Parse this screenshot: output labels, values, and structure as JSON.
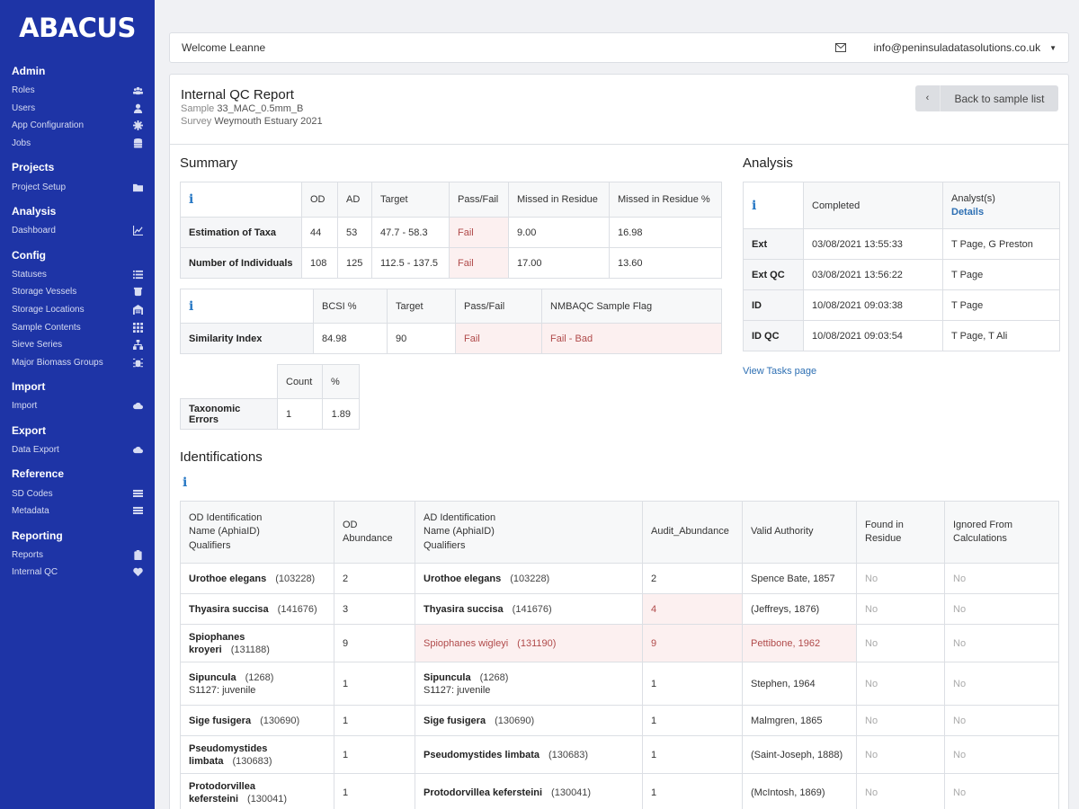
{
  "app": {
    "logo": "ABACUS"
  },
  "sidebar": {
    "sections": [
      {
        "heading": "Admin",
        "items": [
          {
            "label": "Roles",
            "icon": "users-group-icon"
          },
          {
            "label": "Users",
            "icon": "user-icon"
          },
          {
            "label": "App Configuration",
            "icon": "gear-icon"
          },
          {
            "label": "Jobs",
            "icon": "database-icon"
          }
        ]
      },
      {
        "heading": "Projects",
        "items": [
          {
            "label": "Project Setup",
            "icon": "folder-icon"
          }
        ]
      },
      {
        "heading": "Analysis",
        "items": [
          {
            "label": "Dashboard",
            "icon": "chart-icon"
          }
        ]
      },
      {
        "heading": "Config",
        "items": [
          {
            "label": "Statuses",
            "icon": "list-icon"
          },
          {
            "label": "Storage Vessels",
            "icon": "vessel-icon"
          },
          {
            "label": "Storage Locations",
            "icon": "warehouse-icon"
          },
          {
            "label": "Sample Contents",
            "icon": "grid-icon"
          },
          {
            "label": "Sieve Series",
            "icon": "sitemap-icon"
          },
          {
            "label": "Major Biomass Groups",
            "icon": "bug-icon"
          }
        ]
      },
      {
        "heading": "Import",
        "items": [
          {
            "label": "Import",
            "icon": "cloud-upload-icon"
          }
        ]
      },
      {
        "heading": "Export",
        "items": [
          {
            "label": "Data Export",
            "icon": "cloud-download-icon"
          }
        ]
      },
      {
        "heading": "Reference",
        "items": [
          {
            "label": "SD Codes",
            "icon": "table-icon"
          },
          {
            "label": "Metadata",
            "icon": "table-icon"
          }
        ]
      },
      {
        "heading": "Reporting",
        "items": [
          {
            "label": "Reports",
            "icon": "clipboard-icon"
          },
          {
            "label": "Internal QC",
            "icon": "heart-icon"
          }
        ]
      }
    ]
  },
  "topbar": {
    "welcome": "Welcome Leanne",
    "email": "info@peninsuladatasolutions.co.uk"
  },
  "header": {
    "title": "Internal QC Report",
    "sample_label": "Sample",
    "sample_value": "33_MAC_0.5mm_B",
    "survey_label": "Survey",
    "survey_value": "Weymouth Estuary 2021",
    "back_label": "Back to sample list"
  },
  "summary": {
    "heading": "Summary",
    "est": {
      "headers": [
        "OD",
        "AD",
        "Target",
        "Pass/Fail",
        "Missed in Residue",
        "Missed in Residue %"
      ],
      "rows": [
        [
          "Estimation of Taxa",
          "44",
          "53",
          "47.7 - 58.3",
          "Fail",
          "9.00",
          "16.98"
        ],
        [
          "Number of Individuals",
          "108",
          "125",
          "112.5 - 137.5",
          "Fail",
          "17.00",
          "13.60"
        ]
      ]
    },
    "sim": {
      "headers": [
        "BCSI %",
        "Target",
        "Pass/Fail",
        "NMBAQC Sample Flag"
      ],
      "rows": [
        [
          "Similarity Index",
          "84.98",
          "90",
          "Fail",
          "Fail - Bad"
        ]
      ]
    },
    "tax": {
      "headers": [
        "Count",
        "%"
      ],
      "rows": [
        [
          "Taxonomic Errors",
          "1",
          "1.89"
        ]
      ]
    }
  },
  "analysis": {
    "heading": "Analysis",
    "col_completed": "Completed",
    "col_analyst": "Analyst(s)",
    "details_link": "Details",
    "rows": [
      [
        "Ext",
        "03/08/2021 13:55:33",
        "T Page, G Preston"
      ],
      [
        "Ext QC",
        "03/08/2021 13:56:22",
        "T Page"
      ],
      [
        "ID",
        "10/08/2021 09:03:38",
        "T Page"
      ],
      [
        "ID QC",
        "10/08/2021 09:03:54",
        "T Page, T Ali"
      ]
    ],
    "view_tasks": "View Tasks page"
  },
  "identifications": {
    "heading": "Identifications",
    "headers": {
      "od_ident": [
        "OD Identification",
        "Name (AphiaID)",
        "Qualifiers"
      ],
      "od_abund": [
        "OD",
        "Abundance"
      ],
      "ad_ident": [
        "AD Identification",
        "Name (AphiaID)",
        "Qualifiers"
      ],
      "audit": "Audit_Abundance",
      "authority": "Valid Authority",
      "found": [
        "Found in",
        "Residue"
      ],
      "ignored": [
        "Ignored From",
        "Calculations"
      ]
    },
    "rows": [
      {
        "od_name": "Urothoe elegans",
        "od_aph": "(103228)",
        "od_qual": "",
        "od_abund": "2",
        "ad_name": "Urothoe elegans",
        "ad_aph": "(103228)",
        "ad_qual": "",
        "audit": "2",
        "authority": "Spence Bate, 1857",
        "found": "No",
        "ignored": "No",
        "audit_fail": false,
        "ad_fail": false,
        "wrap": false
      },
      {
        "od_name": "Thyasira succisa",
        "od_aph": "(141676)",
        "od_qual": "",
        "od_abund": "3",
        "ad_name": "Thyasira succisa",
        "ad_aph": "(141676)",
        "ad_qual": "",
        "audit": "4",
        "authority": "(Jeffreys, 1876)",
        "found": "No",
        "ignored": "No",
        "audit_fail": true,
        "ad_fail": false,
        "wrap": false
      },
      {
        "od_name": "Spiophanes kroyeri",
        "od_aph": "(131188)",
        "od_qual": "",
        "od_abund": "9",
        "ad_name": "Spiophanes wigleyi",
        "ad_aph": "(131190)",
        "ad_qual": "",
        "audit": "9",
        "authority": "Pettibone, 1962",
        "found": "No",
        "ignored": "No",
        "audit_fail": false,
        "ad_fail": true,
        "wrap": true
      },
      {
        "od_name": "Sipuncula",
        "od_aph": "(1268)",
        "od_qual": "S1127: juvenile",
        "od_abund": "1",
        "ad_name": "Sipuncula",
        "ad_aph": "(1268)",
        "ad_qual": "S1127: juvenile",
        "audit": "1",
        "authority": "Stephen, 1964",
        "found": "No",
        "ignored": "No",
        "audit_fail": false,
        "ad_fail": false,
        "wrap": false
      },
      {
        "od_name": "Sige fusigera",
        "od_aph": "(130690)",
        "od_qual": "",
        "od_abund": "1",
        "ad_name": "Sige fusigera",
        "ad_aph": "(130690)",
        "ad_qual": "",
        "audit": "1",
        "authority": "Malmgren, 1865",
        "found": "No",
        "ignored": "No",
        "audit_fail": false,
        "ad_fail": false,
        "wrap": false
      },
      {
        "od_name": "Pseudomystides limbata",
        "od_aph": "(130683)",
        "od_qual": "",
        "od_abund": "1",
        "ad_name": "Pseudomystides limbata",
        "ad_aph": "(130683)",
        "ad_qual": "",
        "audit": "1",
        "authority": "(Saint-Joseph, 1888)",
        "found": "No",
        "ignored": "No",
        "audit_fail": false,
        "ad_fail": false,
        "wrap": true
      },
      {
        "od_name": "Protodorvillea kefersteini",
        "od_aph": "(130041)",
        "od_qual": "",
        "od_abund": "1",
        "ad_name": "Protodorvillea kefersteini",
        "ad_aph": "(130041)",
        "ad_qual": "",
        "audit": "1",
        "authority": "(McIntosh, 1869)",
        "found": "No",
        "ignored": "No",
        "audit_fail": false,
        "ad_fail": false,
        "wrap": true
      }
    ]
  },
  "colors": {
    "sidebar": "#1e34a6",
    "fail": "#b04a4a",
    "fail_bg": "#fcf0f0",
    "link": "#2d6fb3",
    "info": "#2778c4"
  }
}
